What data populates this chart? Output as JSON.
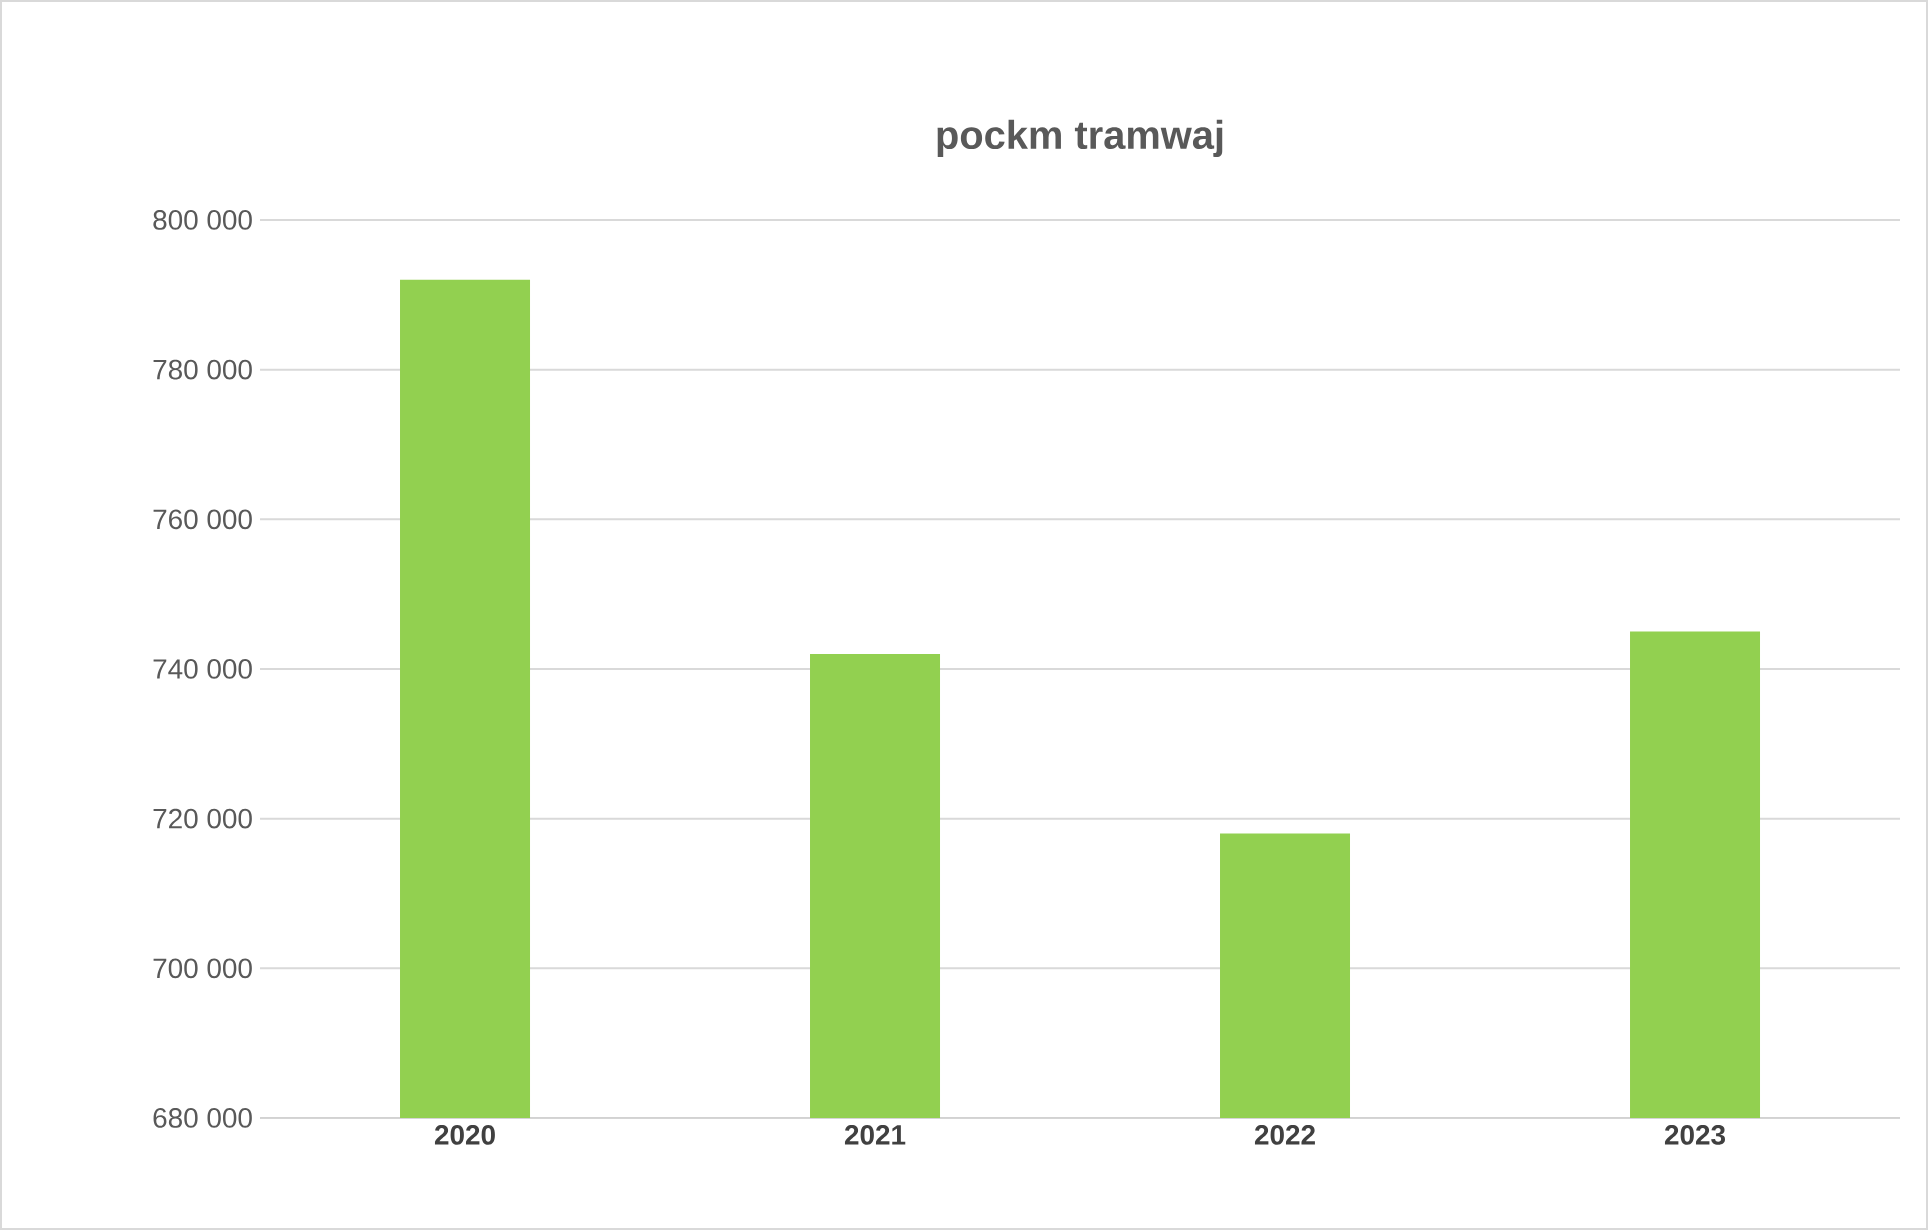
{
  "chart_data": {
    "type": "bar",
    "title": "pockm tramwaj",
    "categories": [
      "2020",
      "2021",
      "2022",
      "2023"
    ],
    "values": [
      792000,
      742000,
      718000,
      745000
    ],
    "color": "#92d050",
    "ylim": [
      680000,
      800000
    ],
    "yticks": [
      {
        "value": 680000,
        "label": "680 000"
      },
      {
        "value": 700000,
        "label": "700 000"
      },
      {
        "value": 720000,
        "label": "720 000"
      },
      {
        "value": 740000,
        "label": "740 000"
      },
      {
        "value": 760000,
        "label": "760 000"
      },
      {
        "value": 780000,
        "label": "780 000"
      },
      {
        "value": 800000,
        "label": "800 000"
      }
    ],
    "grid": "y"
  }
}
